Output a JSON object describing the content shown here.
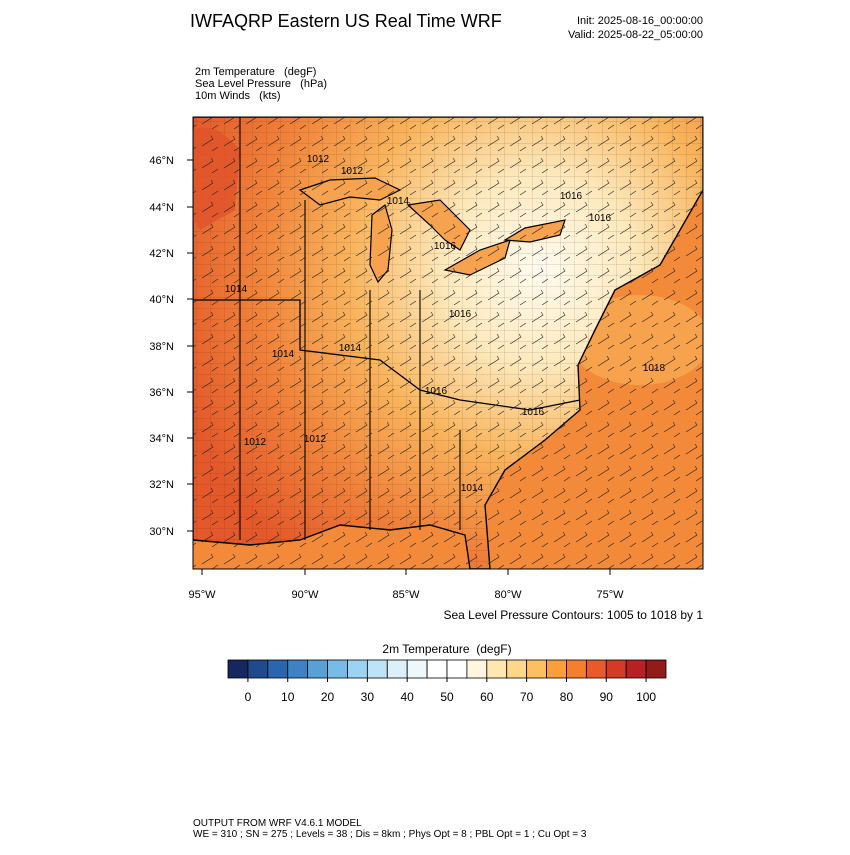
{
  "title": "IWFAQRP Eastern US Real Time WRF",
  "init": "Init: 2025-08-16_00:00:00",
  "valid": "Valid: 2025-08-22_05:00:00",
  "fields": [
    "2m Temperature   (degF)",
    "Sea Level Pressure   (hPa)",
    "10m Winds   (kts)"
  ],
  "map": {
    "lat_labels": [
      "30°N",
      "32°N",
      "34°N",
      "36°N",
      "38°N",
      "40°N",
      "42°N",
      "44°N",
      "46°N"
    ],
    "lon_labels": [
      "95°W",
      "90°W",
      "85°W",
      "80°W",
      "75°W"
    ],
    "contour_labels": [
      "1012",
      "1012",
      "1014",
      "1016",
      "1014",
      "1014",
      "1014",
      "1016",
      "1016",
      "1016",
      "1016",
      "1016",
      "1018",
      "1012",
      "1012",
      "1014"
    ]
  },
  "contour_note": "Sea Level Pressure Contours: 1005 to 1018 by 1",
  "colorbar": {
    "title": "2m Temperature  (degF)",
    "range": [
      -5,
      105
    ],
    "ticks": [
      0,
      10,
      20,
      30,
      40,
      50,
      60,
      70,
      80,
      90,
      100
    ],
    "colors": [
      "#15275e",
      "#1f4a8e",
      "#2a66ad",
      "#3d82c4",
      "#58a0d6",
      "#79bbe8",
      "#9bd3f3",
      "#bde3f6",
      "#dcf0fa",
      "#eef7fc",
      "#ffffff",
      "#ffffff",
      "#fff6e0",
      "#ffe8b0",
      "#fed88a",
      "#fdbf5f",
      "#fb9f3d",
      "#f57f2f",
      "#e85a28",
      "#d53a26",
      "#b92024",
      "#941b1c"
    ]
  },
  "footer": [
    "OUTPUT FROM WRF V4.6.1 MODEL",
    "WE = 310 ; SN = 275 ; Levels = 38 ; Dis = 8km ; Phys Opt = 8 ; PBL Opt = 1 ; Cu Opt = 3"
  ]
}
